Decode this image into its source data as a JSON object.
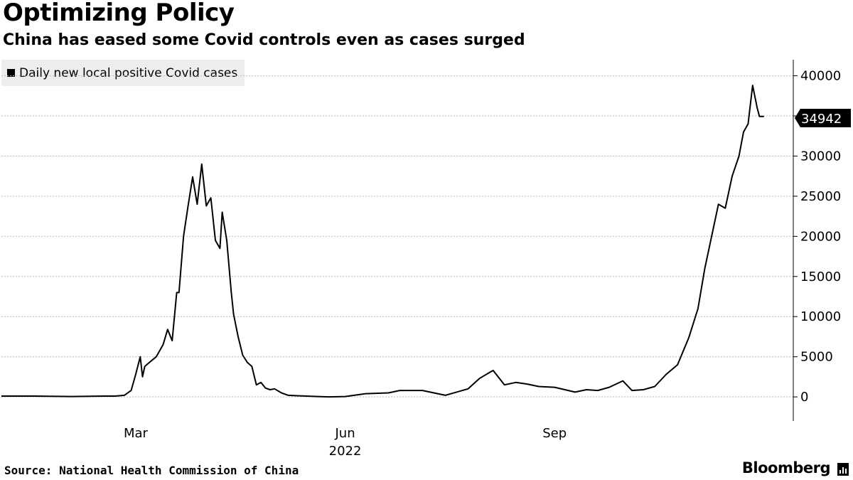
{
  "title": "Optimizing Policy",
  "subtitle": "China has eased some Covid controls even as cases surged",
  "source": "Source: National Health Commission of China",
  "brand": "Bloomberg",
  "chart_data": {
    "type": "line",
    "legend": "top-left",
    "grid": true,
    "y_axis_side": "right",
    "ylim": [
      -3000,
      42000
    ],
    "yticks": [
      0,
      5000,
      10000,
      15000,
      20000,
      25000,
      30000,
      35000,
      40000
    ],
    "x_tick_labels": [
      "Mar",
      "Jun",
      "Sep"
    ],
    "x_secondary_label": "2022",
    "last_value_label": "34942",
    "series": [
      {
        "name": "Daily new local positive Covid cases",
        "color": "#000000",
        "x": [
          "2022-01-01",
          "2022-01-15",
          "2022-02-01",
          "2022-02-15",
          "2022-02-20",
          "2022-02-24",
          "2022-02-27",
          "2022-03-01",
          "2022-03-03",
          "2022-03-04",
          "2022-03-05",
          "2022-03-07",
          "2022-03-10",
          "2022-03-13",
          "2022-03-15",
          "2022-03-17",
          "2022-03-19",
          "2022-03-20",
          "2022-03-22",
          "2022-03-24",
          "2022-03-26",
          "2022-03-28",
          "2022-03-30",
          "2022-04-01",
          "2022-04-03",
          "2022-04-05",
          "2022-04-07",
          "2022-04-08",
          "2022-04-10",
          "2022-04-12",
          "2022-04-13",
          "2022-04-15",
          "2022-04-17",
          "2022-04-19",
          "2022-04-21",
          "2022-04-23",
          "2022-04-25",
          "2022-04-27",
          "2022-04-29",
          "2022-05-01",
          "2022-05-04",
          "2022-05-07",
          "2022-05-10",
          "2022-05-15",
          "2022-05-20",
          "2022-05-25",
          "2022-06-01",
          "2022-06-10",
          "2022-06-20",
          "2022-06-25",
          "2022-07-05",
          "2022-07-15",
          "2022-07-25",
          "2022-07-30",
          "2022-08-05",
          "2022-08-10",
          "2022-08-15",
          "2022-08-20",
          "2022-08-25",
          "2022-09-01",
          "2022-09-07",
          "2022-09-10",
          "2022-09-15",
          "2022-09-20",
          "2022-09-25",
          "2022-10-01",
          "2022-10-05",
          "2022-10-10",
          "2022-10-15",
          "2022-10-20",
          "2022-10-25",
          "2022-10-30",
          "2022-11-03",
          "2022-11-06",
          "2022-11-09",
          "2022-11-12",
          "2022-11-15",
          "2022-11-18",
          "2022-11-21",
          "2022-11-23",
          "2022-11-25",
          "2022-11-27",
          "2022-11-29",
          "2022-11-30",
          "2022-12-02"
        ],
        "values": [
          100,
          100,
          50,
          100,
          100,
          200,
          800,
          2800,
          5000,
          2500,
          3800,
          4300,
          5000,
          6500,
          8400,
          7000,
          13000,
          13000,
          20000,
          23800,
          27400,
          24000,
          29000,
          23800,
          24800,
          19500,
          18500,
          23000,
          19500,
          13000,
          10300,
          7500,
          5200,
          4300,
          3800,
          1500,
          1800,
          1100,
          900,
          1000,
          500,
          200,
          150,
          100,
          50,
          0,
          50,
          400,
          500,
          800,
          800,
          200,
          1000,
          2300,
          3300,
          1500,
          1800,
          1600,
          1300,
          1200,
          800,
          600,
          900,
          800,
          1200,
          2000,
          800,
          900,
          1300,
          2800,
          4000,
          7400,
          11000,
          16000,
          20000,
          24000,
          23500,
          27500,
          30000,
          33000,
          34000,
          38800,
          36000,
          34942,
          34942
        ]
      }
    ]
  }
}
